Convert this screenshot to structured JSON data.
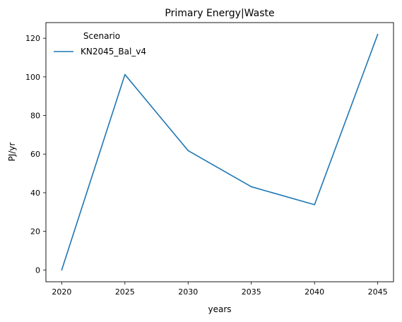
{
  "chart_data": {
    "type": "line",
    "title": "Primary Energy|Waste",
    "xlabel": "years",
    "ylabel": "PJ/yr",
    "x": [
      2020,
      2025,
      2030,
      2035,
      2040,
      2045
    ],
    "xlim": [
      2018.75,
      2046.25
    ],
    "ylim": [
      -6.1,
      128.1
    ],
    "xticks": [
      2020,
      2025,
      2030,
      2035,
      2040,
      2045
    ],
    "yticks": [
      0,
      20,
      40,
      60,
      80,
      100,
      120
    ],
    "grid": false,
    "legend": {
      "title": "Scenario",
      "placement": "top-left"
    },
    "series": [
      {
        "name": "KN2045_Bal_v4",
        "color": "#1f77b4",
        "values": [
          0,
          101.2,
          61.8,
          43.1,
          33.8,
          122.0
        ]
      }
    ]
  }
}
